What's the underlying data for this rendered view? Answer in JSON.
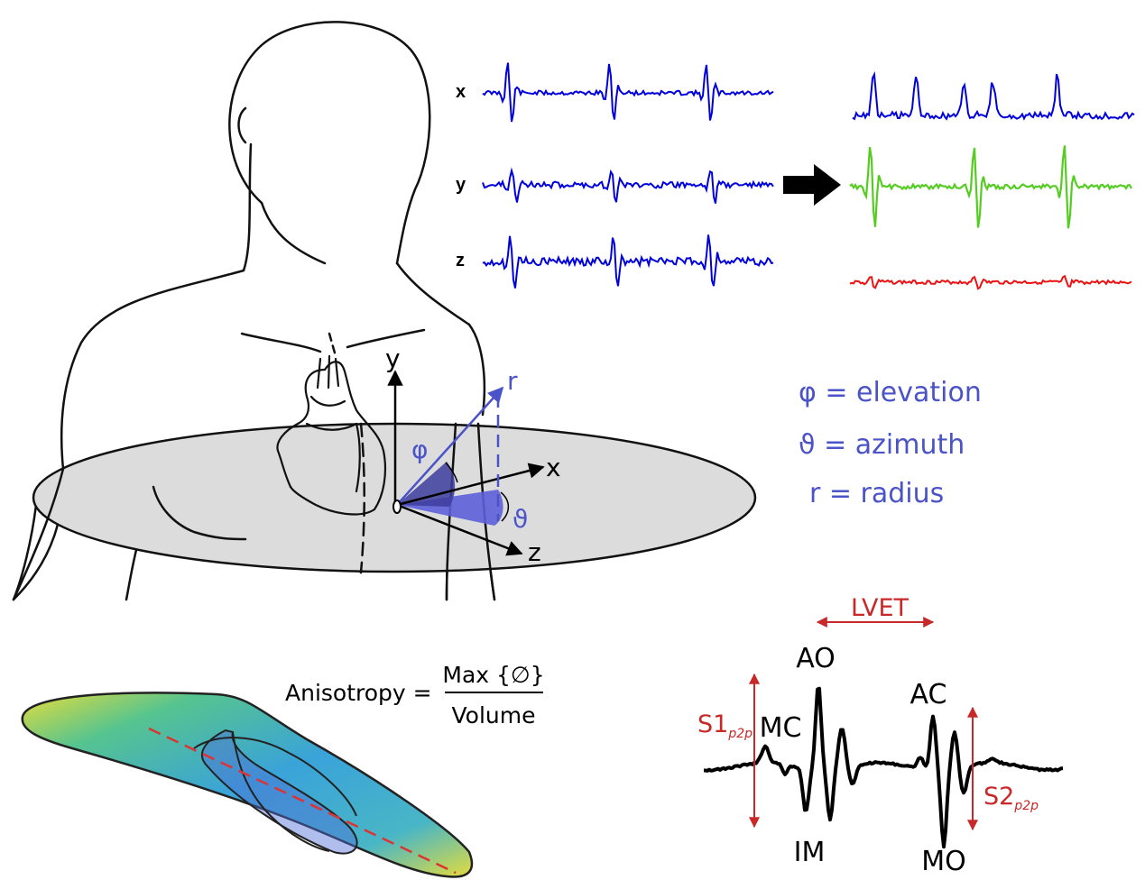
{
  "signals": {
    "left_labels": [
      "x",
      "y",
      "z"
    ],
    "colors": {
      "input": "#0000dd",
      "output_top": "#0000dd",
      "output_mid": "#55cc22",
      "output_bottom": "#ee1111"
    }
  },
  "coordinate_system": {
    "axis_y": "y",
    "axis_x": "x",
    "axis_z": "z",
    "vector_r": "r",
    "angle_phi": "φ",
    "angle_theta": "ϑ",
    "accent_color": "#4b53c8"
  },
  "legend": {
    "phi": "φ = elevation",
    "theta": "ϑ = azimuth",
    "r": "r = radius"
  },
  "anisotropy": {
    "lhs": "Anisotropy =",
    "numerator": "Max {∅}",
    "denominator": "Volume"
  },
  "waveform": {
    "lvet": "LVET",
    "ao": "AO",
    "mc": "MC",
    "ac": "AC",
    "im": "IM",
    "mo": "MO",
    "s1_main": "S1",
    "s1_sub": "p2p",
    "s2_main": "S2",
    "s2_sub": "p2p",
    "red": "#c82828"
  }
}
